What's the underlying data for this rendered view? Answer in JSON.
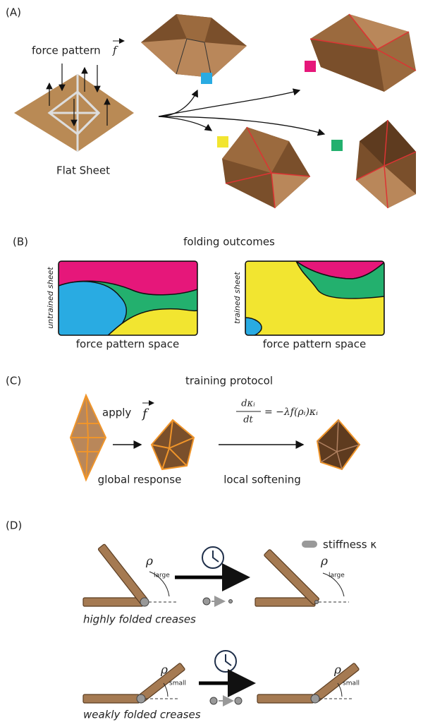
{
  "panel_a": {
    "label": "(A)",
    "force_label": "force pattern",
    "force_symbol": "f",
    "sheet_label": "Flat Sheet"
  },
  "panel_b": {
    "label": "(B)",
    "title": "folding outcomes",
    "left_ylabel": "untrained sheet",
    "right_ylabel": "trained sheet",
    "left_xlabel": "force pattern space",
    "right_xlabel": "force pattern space"
  },
  "panel_c": {
    "label": "(C)",
    "title": "training protocol",
    "apply": "apply",
    "force_symbol": "f",
    "numerator": "dκᵢ",
    "denominator": "dt",
    "rhs": "= −λf(ρᵢ)κᵢ",
    "step1": "global response",
    "step2": "local softening"
  },
  "panel_d": {
    "label": "(D)",
    "legend": "stiffness κ",
    "rho": "ρ",
    "large": "large",
    "small": "small",
    "caption_high": "highly folded creases",
    "caption_weak": "weakly folded creases"
  }
}
